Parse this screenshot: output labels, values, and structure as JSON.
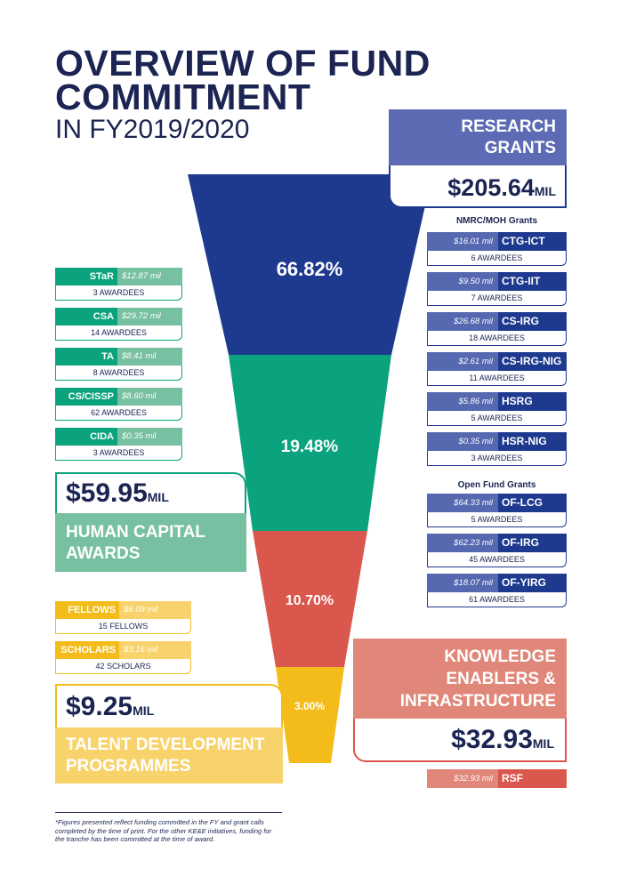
{
  "title": {
    "line1": "OVERVIEW OF FUND",
    "line2": "COMMITMENT",
    "line3": "IN FY2019/2020"
  },
  "colors": {
    "navy": "#1e3a8f",
    "periwinkle": "#5c6bb3",
    "green": "#0aa37d",
    "green_light": "#77c0a1",
    "red": "#d9574c",
    "salmon": "#e08779",
    "yellow": "#f3bc1a",
    "yellow_light": "#f8d36c",
    "text": "#1b2452"
  },
  "chart_data": {
    "type": "funnel",
    "segments": [
      {
        "label": "66.82%",
        "value": 66.82,
        "category": "RESEARCH GRANTS",
        "amount": "$205.64"
      },
      {
        "label": "19.48%",
        "value": 19.48,
        "category": "HUMAN CAPITAL AWARDS",
        "amount": "$59.95"
      },
      {
        "label": "10.70%",
        "value": 10.7,
        "category": "KNOWLEDGE ENABLERS & INFRASTRUCTURE",
        "amount": "$32.93"
      },
      {
        "label": "3.00%",
        "value": 3.0,
        "category": "TALENT DEVELOPMENT PROGRAMMES",
        "amount": "$9.25"
      }
    ]
  },
  "research": {
    "cat_line1": "RESEARCH",
    "cat_line2": "GRANTS",
    "amount": "$205.64",
    "unit": "MIL",
    "group1_label": "NMRC/MOH Grants",
    "group2_label": "Open Fund Grants",
    "items": [
      {
        "amt": "$16.01 mil",
        "name": "CTG-ICT",
        "awardees": "6 AWARDEES"
      },
      {
        "amt": "$9.50 mil",
        "name": "CTG-IIT",
        "awardees": "7 AWARDEES"
      },
      {
        "amt": "$26.68 mil",
        "name": "CS-IRG",
        "awardees": "18 AWARDEES"
      },
      {
        "amt": "$2.61 mil",
        "name": "CS-IRG-NIG",
        "awardees": "11 AWARDEES"
      },
      {
        "amt": "$5.86 mil",
        "name": "HSRG",
        "awardees": "5 AWARDEES"
      },
      {
        "amt": "$0.35 mil",
        "name": "HSR-NIG",
        "awardees": "3 AWARDEES"
      },
      {
        "amt": "$64.33 mil",
        "name": "OF-LCG",
        "awardees": "5 AWARDEES"
      },
      {
        "amt": "$62.23 mil",
        "name": "OF-IRG",
        "awardees": "45 AWARDEES"
      },
      {
        "amt": "$18.07 mil",
        "name": "OF-YIRG",
        "awardees": "61 AWARDEES"
      }
    ]
  },
  "human": {
    "cat_line1": "HUMAN CAPITAL",
    "cat_line2": "AWARDS",
    "amount": "$59.95",
    "unit": "MIL",
    "items": [
      {
        "name": "STaR",
        "amt": "$12.87 mil",
        "awardees": "3 AWARDEES"
      },
      {
        "name": "CSA",
        "amt": "$29.72 mil",
        "awardees": "14 AWARDEES"
      },
      {
        "name": "TA",
        "amt": "$8.41 mil",
        "awardees": "8 AWARDEES"
      },
      {
        "name": "CS/CISSP",
        "amt": "$8.60 mil",
        "awardees": "62 AWARDEES"
      },
      {
        "name": "CIDA",
        "amt": "$0.35 mil",
        "awardees": "3 AWARDEES"
      }
    ]
  },
  "talent": {
    "cat_line1": "TALENT DEVELOPMENT",
    "cat_line2": "PROGRAMMES",
    "amount": "$9.25",
    "unit": "MIL",
    "items": [
      {
        "name": "FELLOWS",
        "amt": "$6.09 mil",
        "awardees": "15 FELLOWS"
      },
      {
        "name": "SCHOLARS",
        "amt": "$3.16 mil",
        "awardees": "42 SCHOLARS"
      }
    ]
  },
  "knowledge": {
    "cat_line1": "KNOWLEDGE",
    "cat_line2": "ENABLERS &",
    "cat_line3": "INFRASTRUCTURE",
    "amount": "$32.93",
    "unit": "MIL",
    "item_amt": "$32.93 mil",
    "item_name": "RSF"
  },
  "footnote": "*Figures presented reflect funding committed in the FY and grant calls completed by the time of print. For the other KE&E initiatives, funding for the tranche has been committed at the time of award."
}
